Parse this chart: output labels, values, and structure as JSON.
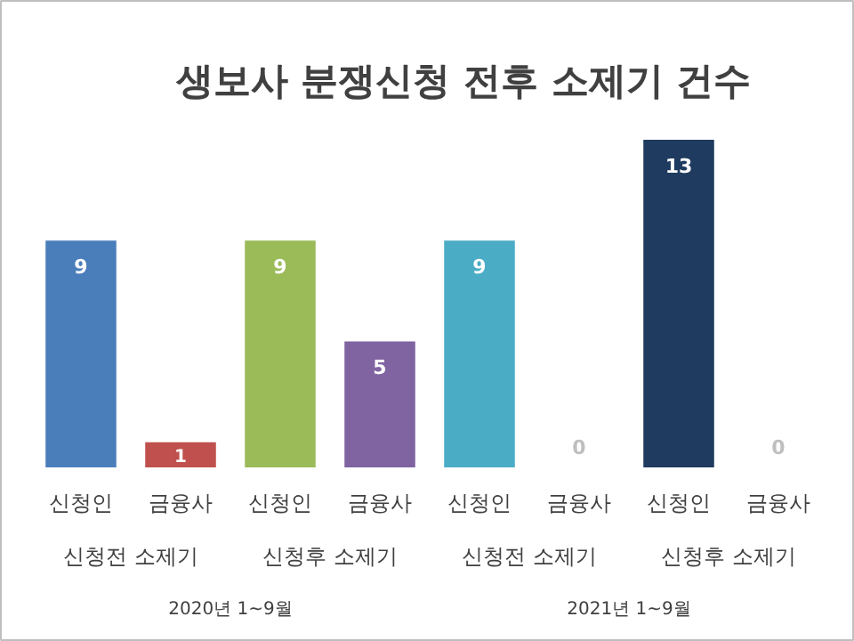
{
  "chart_data": {
    "type": "bar",
    "title": "생보사 분쟁신청 전후 소제기 건수",
    "categories": [
      "신청인",
      "금융사",
      "신청인",
      "금융사",
      "신청인",
      "금융사",
      "신청인",
      "금융사"
    ],
    "values": [
      9,
      1,
      9,
      5,
      9,
      0,
      13,
      0
    ],
    "colors": [
      "#4a7ebb",
      "#c0504d",
      "#9bbb59",
      "#8064a2",
      "#4bacc6",
      "#7f7f7f",
      "#1f3b5f",
      "#7f7f7f"
    ],
    "data_labels": true,
    "grid": false,
    "annotations": [
      "신청전 소제기",
      "신청후 소제기",
      "신청전 소제기",
      "신청후 소제기",
      "2020년 1~9월",
      "2021년 1~9월"
    ]
  }
}
